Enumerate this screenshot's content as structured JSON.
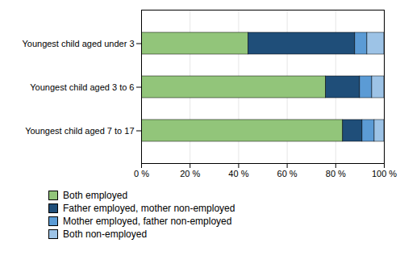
{
  "chart_data": {
    "type": "bar",
    "orientation": "horizontal",
    "stacked": true,
    "categories": [
      "Youngest child aged 7 to 17",
      "Youngest child aged 3 to 6",
      "Youngest child aged under 3"
    ],
    "series": [
      {
        "name": "Both employed",
        "color": "#92c57a",
        "values": [
          83,
          76,
          44
        ]
      },
      {
        "name": "Father employed, mother non-employed",
        "color": "#1f4e79",
        "values": [
          8,
          14,
          44
        ]
      },
      {
        "name": "Mother employed, father non-employed",
        "color": "#5b9bd5",
        "values": [
          5,
          5,
          5
        ]
      },
      {
        "name": "Both non-employed",
        "color": "#9dc3e6",
        "values": [
          4,
          5,
          7
        ]
      }
    ],
    "xlim": [
      0,
      100
    ],
    "xticks": [
      {
        "value": 0,
        "label": "0 %"
      },
      {
        "value": 20,
        "label": "20 %"
      },
      {
        "value": 40,
        "label": "40 %"
      },
      {
        "value": 60,
        "label": "60 %"
      },
      {
        "value": 80,
        "label": "80 %"
      },
      {
        "value": 100,
        "label": "100 %"
      }
    ],
    "grid": true,
    "legend": "bottom"
  }
}
